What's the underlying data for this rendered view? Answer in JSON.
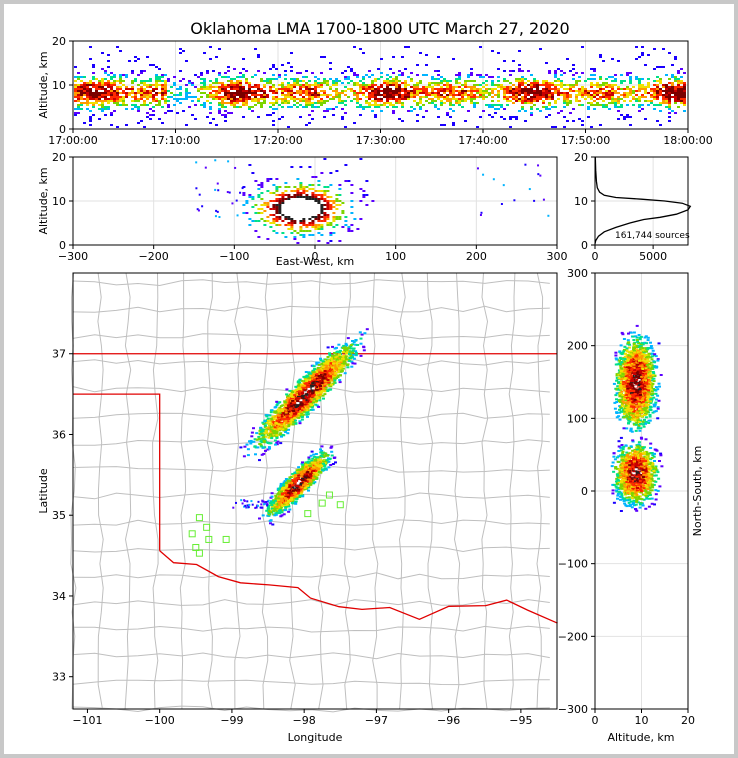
{
  "title": "Oklahoma LMA 1700-1800 UTC March 27, 2020",
  "colors": {
    "density_scale": [
      "#1a00ff",
      "#5a00ff",
      "#00b4ff",
      "#00e08a",
      "#7cd400",
      "#f0e000",
      "#ff9a00",
      "#ff2a00",
      "#c80000",
      "#7a0000",
      "#222222",
      "#ffffff"
    ],
    "state_border": "#e00000",
    "county_lines": "#bfbfbf",
    "stations": "#66ee33"
  },
  "chart_data": [
    {
      "id": "time-altitude",
      "type": "heatmap",
      "ylabel": "Altitude, km",
      "xlim": [
        "17:00:00",
        "18:00:00"
      ],
      "ylim": [
        0,
        20
      ],
      "xticks": [
        "17:00:00",
        "17:10:00",
        "17:20:00",
        "17:30:00",
        "17:40:00",
        "17:50:00",
        "18:00:00"
      ],
      "yticks": [
        "0",
        "10",
        "20"
      ],
      "peak_altitude_km": 8.5
    },
    {
      "id": "eastwest-altitude",
      "type": "heatmap",
      "xlabel": "East-West, km",
      "ylabel": "Altitude, km",
      "xlim": [
        -300,
        300
      ],
      "ylim": [
        0,
        20
      ],
      "xticks": [
        "−300",
        "−200",
        "−100",
        "0",
        "100",
        "200",
        "300"
      ],
      "yticks": [
        "0",
        "10",
        "20"
      ],
      "core_x_km": [
        -40,
        0
      ],
      "core_altitude_km": 8.5
    },
    {
      "id": "altitude-histogram",
      "type": "line",
      "xlim": [
        0,
        8000
      ],
      "ylim": [
        0,
        20
      ],
      "xticks": [
        "0",
        "5000"
      ],
      "yticks": [
        "0",
        "10",
        "20"
      ],
      "annotation": "161,744 sources",
      "x": [
        0,
        60,
        300,
        800,
        1800,
        3000,
        4200,
        5600,
        7000,
        8000,
        8200,
        7500,
        6000,
        4000,
        1800,
        800,
        400,
        200,
        120,
        60,
        30
      ],
      "y": [
        0.3,
        1,
        2,
        3,
        4,
        5,
        5.8,
        6.3,
        7,
        8,
        8.8,
        9.5,
        10,
        10.4,
        10.8,
        11.3,
        12,
        13,
        14.5,
        17,
        20
      ]
    },
    {
      "id": "plan-view",
      "type": "heatmap",
      "xlabel": "Longitude",
      "ylabel": "Latitude",
      "xlim": [
        -101.2,
        -94.5
      ],
      "ylim": [
        32.6,
        38
      ],
      "xticks": [
        "−101",
        "−100",
        "−99",
        "−98",
        "−97",
        "−96",
        "−95"
      ],
      "yticks": [
        "33",
        "34",
        "35",
        "36",
        "37"
      ],
      "stations": [
        [
          -99.45,
          34.97
        ],
        [
          -99.35,
          34.85
        ],
        [
          -99.55,
          34.77
        ],
        [
          -99.32,
          34.7
        ],
        [
          -99.08,
          34.7
        ],
        [
          -99.5,
          34.6
        ],
        [
          -99.45,
          34.53
        ],
        [
          -97.65,
          35.25
        ],
        [
          -97.75,
          35.15
        ],
        [
          -97.95,
          35.02
        ],
        [
          -97.5,
          35.13
        ]
      ]
    },
    {
      "id": "northsouth-altitude",
      "type": "heatmap",
      "xlabel": "Altitude, km",
      "ylabel": "North-South, km",
      "xlim": [
        0,
        20
      ],
      "ylim": [
        -300,
        300
      ],
      "xticks": [
        "0",
        "10",
        "20"
      ],
      "yticks": [
        "−300",
        "−200",
        "−100",
        "0",
        "100",
        "200",
        "300"
      ],
      "core_y_km": [
        20,
        120
      ]
    }
  ]
}
